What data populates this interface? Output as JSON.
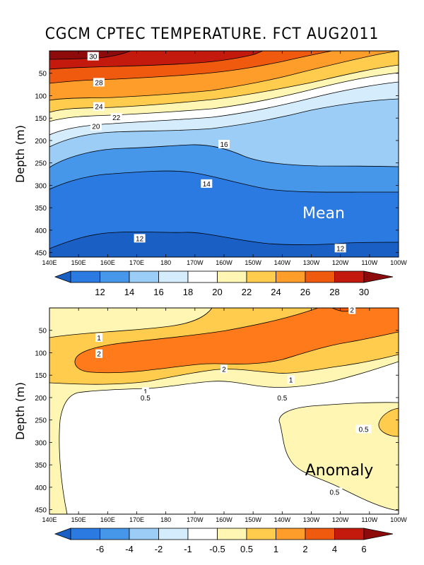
{
  "title": "CGCM CPTEC TEMPERATURE. FCT AUG2011",
  "chart_data": [
    {
      "type": "heatmap",
      "panel": "Mean",
      "label": "Mean",
      "ylabel": "Depth (m)",
      "x_ticks": [
        "140E",
        "150E",
        "160E",
        "170E",
        "180",
        "170W",
        "160W",
        "150W",
        "140W",
        "130W",
        "120W",
        "110W",
        "100W"
      ],
      "y_ticks": [
        50,
        100,
        150,
        200,
        250,
        300,
        350,
        400,
        450
      ],
      "ylim": [
        0,
        460
      ],
      "colorbar": {
        "levels": [
          12,
          14,
          16,
          18,
          20,
          22,
          24,
          26,
          28,
          30
        ],
        "labels": [
          "12",
          "14",
          "16",
          "18",
          "20",
          "22",
          "24",
          "26",
          "28",
          "30"
        ]
      },
      "contour_labels": [
        {
          "text": "30",
          "x": 155,
          "y": 12
        },
        {
          "text": "28",
          "x": 157,
          "y": 70
        },
        {
          "text": "24",
          "x": 157,
          "y": 124
        },
        {
          "text": "22",
          "x": 163,
          "y": 148
        },
        {
          "text": "20",
          "x": 156,
          "y": 168
        },
        {
          "text": "16",
          "x": 200,
          "y": 208
        },
        {
          "text": "14",
          "x": 194,
          "y": 296
        },
        {
          "text": "12",
          "x": 171,
          "y": 418
        },
        {
          "text": "12",
          "x": 240,
          "y": 440
        }
      ]
    },
    {
      "type": "heatmap",
      "panel": "Anomaly",
      "label": "Anomaly",
      "ylabel": "Depth (m)",
      "x_ticks": [
        "140E",
        "150E",
        "160E",
        "170E",
        "180",
        "170W",
        "160W",
        "150W",
        "140W",
        "130W",
        "120W",
        "110W",
        "100W"
      ],
      "y_ticks": [
        50,
        100,
        150,
        200,
        250,
        300,
        350,
        400,
        450
      ],
      "ylim": [
        0,
        460
      ],
      "colorbar": {
        "levels": [
          -6,
          -4,
          -2,
          -1,
          -0.5,
          0.5,
          1,
          2,
          4,
          6
        ],
        "labels": [
          "-6",
          "-4",
          "-2",
          "-1",
          "-0.5",
          "0.5",
          "1",
          "2",
          "4",
          "6"
        ]
      },
      "contour_labels": [
        {
          "text": "2",
          "x": 244,
          "y": 4
        },
        {
          "text": "1",
          "x": 157,
          "y": 66
        },
        {
          "text": "2",
          "x": 157,
          "y": 102
        },
        {
          "text": "2",
          "x": 200,
          "y": 136
        },
        {
          "text": "1",
          "x": 223,
          "y": 160
        },
        {
          "text": "1",
          "x": 173,
          "y": 186
        },
        {
          "text": "0.5",
          "x": 173,
          "y": 200
        },
        {
          "text": "0.5",
          "x": 220,
          "y": 200
        },
        {
          "text": "0.5",
          "x": 248,
          "y": 270
        },
        {
          "text": "0.5",
          "x": 238,
          "y": 410
        }
      ]
    }
  ]
}
